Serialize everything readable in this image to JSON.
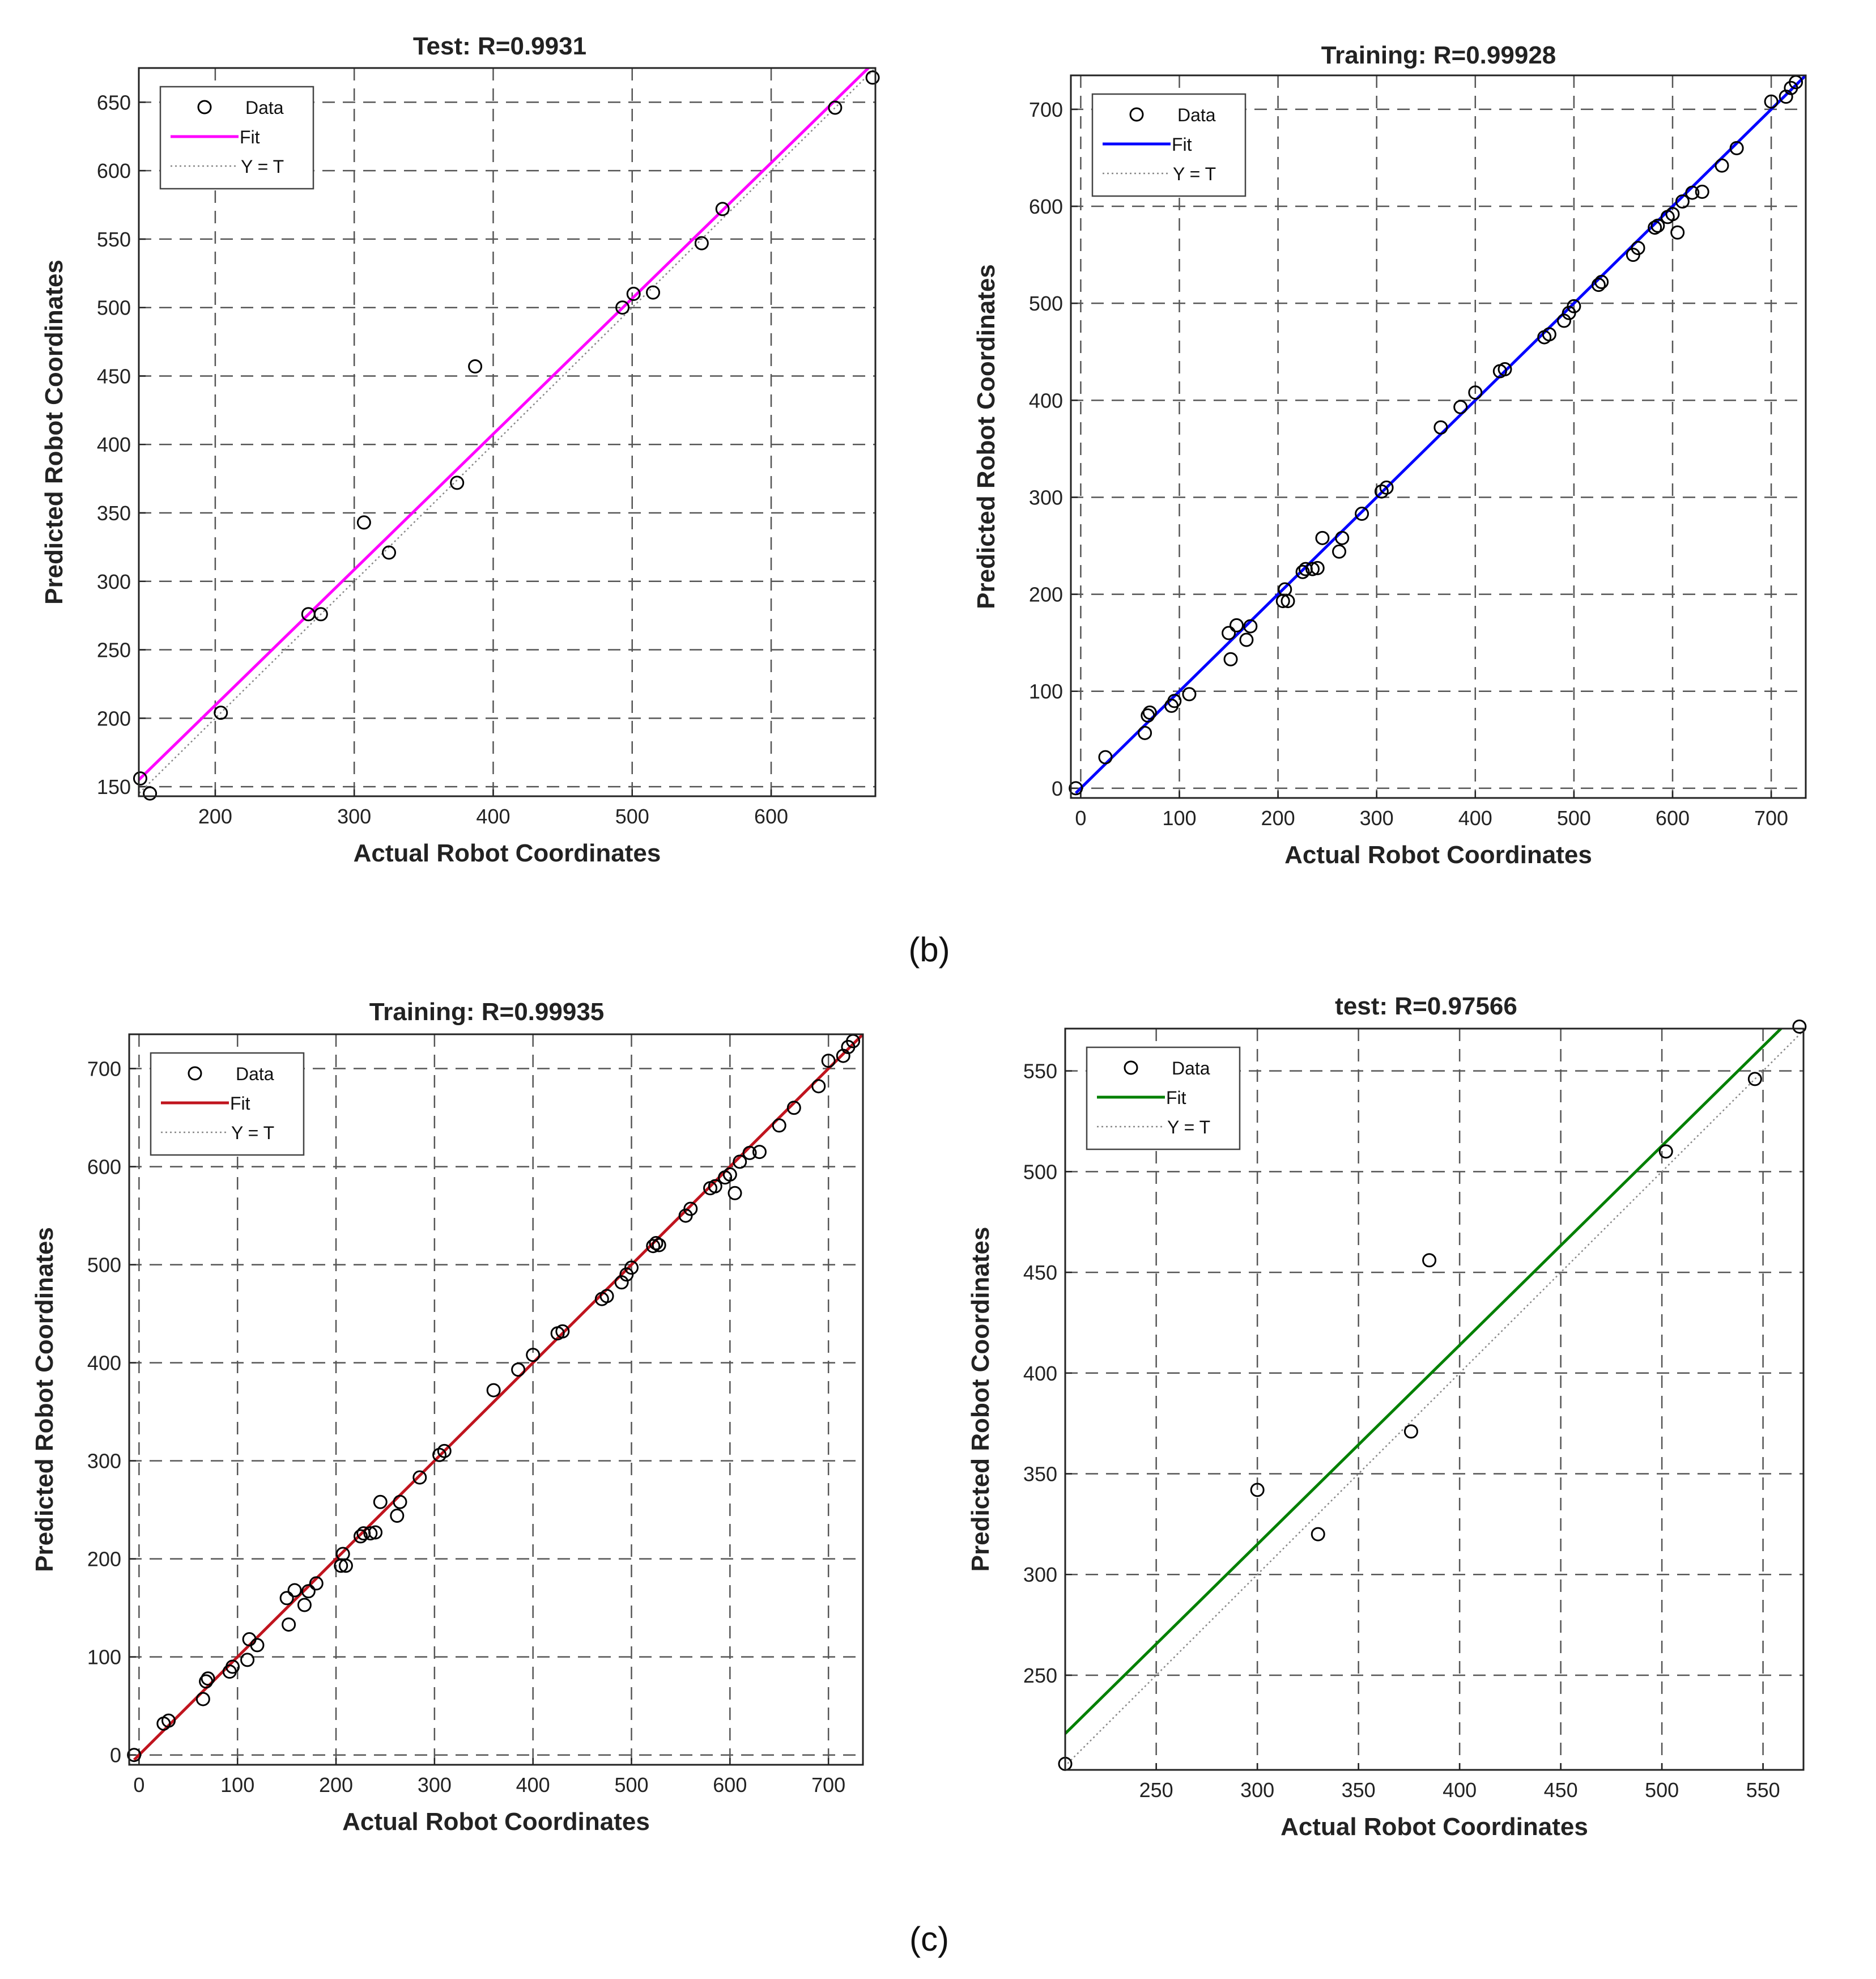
{
  "figure_captions": [
    "(b)",
    "(c)"
  ],
  "chart_data": [
    {
      "type": "scatter",
      "title": "Test: R=0.9931",
      "xlabel": "Actual Robot Coordinates",
      "ylabel": "Predicted Robot Coordinates",
      "xlim": [
        145,
        675
      ],
      "ylim": [
        143,
        675
      ],
      "xticks": [
        200,
        300,
        400,
        500,
        600
      ],
      "yticks": [
        150,
        200,
        250,
        300,
        350,
        400,
        450,
        500,
        550,
        600,
        650
      ],
      "grid": true,
      "legend": {
        "position": "top-left",
        "entries": [
          "Data",
          "Fit",
          "Y = T"
        ]
      },
      "fit_color": "#ff00ff",
      "fit_line": {
        "x": [
          145,
          675
        ],
        "y": [
          155,
          680
        ]
      },
      "points": {
        "x": [
          146,
          153,
          204,
          267,
          276,
          307,
          325,
          374,
          387,
          493,
          501,
          515,
          550,
          565,
          646,
          673
        ],
        "y": [
          156,
          145,
          204,
          276,
          276,
          343,
          321,
          372,
          457,
          500,
          510,
          511,
          547,
          572,
          646,
          668
        ]
      }
    },
    {
      "type": "scatter",
      "title": "Training: R=0.99928",
      "xlabel": "Actual Robot Coordinates",
      "ylabel": "Predicted Robot Coordinates",
      "xlim": [
        -10,
        735
      ],
      "ylim": [
        -10,
        735
      ],
      "xticks": [
        0,
        100,
        200,
        300,
        400,
        500,
        600,
        700
      ],
      "yticks": [
        0,
        100,
        200,
        300,
        400,
        500,
        600,
        700
      ],
      "grid": true,
      "legend": {
        "position": "top-left",
        "entries": [
          "Data",
          "Fit",
          "Y = T"
        ]
      },
      "fit_color": "#0000ff",
      "fit_line": {
        "x": [
          -5,
          735
        ],
        "y": [
          -5,
          735
        ]
      },
      "points": {
        "x": [
          -5,
          25,
          65,
          68,
          70,
          92,
          95,
          110,
          150,
          152,
          158,
          168,
          172,
          205,
          207,
          210,
          225,
          228,
          235,
          240,
          245,
          262,
          265,
          285,
          305,
          310,
          365,
          385,
          400,
          425,
          430,
          470,
          475,
          490,
          495,
          500,
          525,
          528,
          560,
          565,
          582,
          585,
          595,
          600,
          605,
          610,
          620,
          630,
          650,
          665,
          700,
          715,
          720,
          725
        ],
        "y": [
          0,
          32,
          57,
          75,
          78,
          85,
          90,
          97,
          160,
          133,
          168,
          153,
          167,
          193,
          205,
          193,
          223,
          226,
          226,
          227,
          258,
          244,
          258,
          283,
          306,
          310,
          372,
          393,
          408,
          430,
          432,
          465,
          468,
          482,
          490,
          497,
          519,
          522,
          550,
          557,
          578,
          580,
          589,
          592,
          573,
          605,
          614,
          615,
          642,
          660,
          708,
          713,
          722,
          728
        ]
      }
    },
    {
      "type": "scatter",
      "title": "Training: R=0.99935",
      "xlabel": "Actual Robot Coordinates",
      "ylabel": "Predicted Robot Coordinates",
      "xlim": [
        -10,
        735
      ],
      "ylim": [
        -10,
        735
      ],
      "xticks": [
        0,
        100,
        200,
        300,
        400,
        500,
        600,
        700
      ],
      "yticks": [
        0,
        100,
        200,
        300,
        400,
        500,
        600,
        700
      ],
      "grid": true,
      "legend": {
        "position": "top-left",
        "entries": [
          "Data",
          "Fit",
          "Y = T"
        ]
      },
      "fit_color": "#c0141e",
      "fit_line": {
        "x": [
          -5,
          735
        ],
        "y": [
          -5,
          735
        ]
      },
      "points": {
        "x": [
          -5,
          25,
          30,
          65,
          68,
          70,
          92,
          95,
          110,
          112,
          120,
          150,
          152,
          158,
          168,
          172,
          180,
          205,
          207,
          210,
          225,
          228,
          235,
          240,
          245,
          262,
          265,
          285,
          305,
          310,
          360,
          385,
          400,
          425,
          430,
          470,
          475,
          490,
          495,
          500,
          522,
          525,
          528,
          555,
          560,
          580,
          585,
          595,
          600,
          605,
          610,
          620,
          630,
          650,
          665,
          690,
          700,
          715,
          720,
          725
        ],
        "y": [
          0,
          32,
          35,
          57,
          75,
          78,
          85,
          90,
          97,
          118,
          112,
          160,
          133,
          168,
          153,
          167,
          175,
          193,
          205,
          193,
          223,
          226,
          226,
          227,
          258,
          244,
          258,
          283,
          306,
          310,
          372,
          393,
          408,
          430,
          432,
          465,
          468,
          482,
          490,
          497,
          519,
          522,
          520,
          550,
          557,
          578,
          580,
          589,
          592,
          573,
          605,
          614,
          615,
          642,
          660,
          682,
          708,
          713,
          722,
          728
        ]
      }
    },
    {
      "type": "scatter",
      "title": "test: R=0.97566",
      "xlabel": "Actual Robot Coordinates",
      "ylabel": "Predicted Robot Coordinates",
      "xlim": [
        205,
        570
      ],
      "ylim": [
        203,
        571
      ],
      "xticks": [
        250,
        300,
        350,
        400,
        450,
        500,
        550
      ],
      "yticks": [
        250,
        300,
        350,
        400,
        450,
        500,
        550
      ],
      "grid": true,
      "legend": {
        "position": "top-left",
        "entries": [
          "Data",
          "Fit",
          "Y = T"
        ]
      },
      "fit_color": "#008000",
      "fit_line": {
        "x": [
          205,
          570
        ],
        "y": [
          221,
          582
        ]
      },
      "points": {
        "x": [
          205,
          300,
          330,
          376,
          385,
          502,
          546,
          568
        ],
        "y": [
          206,
          342,
          320,
          371,
          456,
          510,
          546,
          572
        ]
      }
    }
  ]
}
